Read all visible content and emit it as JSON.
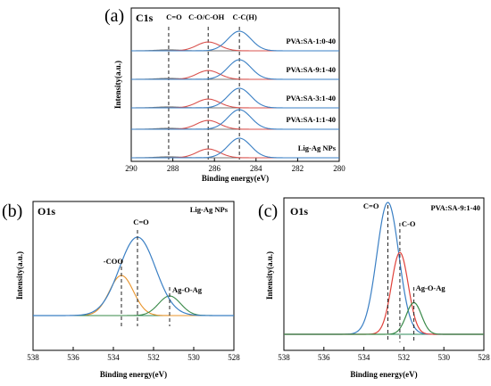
{
  "chart_data": [
    {
      "type": "line",
      "panel_label": "(a)",
      "core_label": "C1s",
      "xlabel": "Binding energy(eV)",
      "ylabel": "Intensity(a.u.)",
      "xlim": [
        290,
        280
      ],
      "x_ticks": [
        "290",
        "288",
        "286",
        "284",
        "282",
        "280"
      ],
      "x_reversed": true,
      "peak_labels": [
        {
          "text": "C=O",
          "x": 288.2
        },
        {
          "text": "C-O/C-OH",
          "x": 286.3
        },
        {
          "text": "C-C(H)",
          "x": 284.8
        }
      ],
      "stacks": [
        {
          "sample": "PVA:SA-1:0-40",
          "peaks": [
            {
              "center": 288.2,
              "height": 0.05,
              "color": "#7a7a7a"
            },
            {
              "center": 286.3,
              "height": 0.45,
              "color": "#d9534f"
            },
            {
              "center": 284.8,
              "height": 1.0,
              "color": "#3a7fc4"
            }
          ]
        },
        {
          "sample": "PVA:SA-9:1-40",
          "peaks": [
            {
              "center": 288.2,
              "height": 0.05,
              "color": "#7a7a7a"
            },
            {
              "center": 286.3,
              "height": 0.45,
              "color": "#d9534f"
            },
            {
              "center": 284.8,
              "height": 1.0,
              "color": "#3a7fc4"
            }
          ]
        },
        {
          "sample": "PVA:SA-3:1-40",
          "peaks": [
            {
              "center": 288.2,
              "height": 0.05,
              "color": "#7a7a7a"
            },
            {
              "center": 286.3,
              "height": 0.45,
              "color": "#d9534f"
            },
            {
              "center": 284.8,
              "height": 1.0,
              "color": "#3a7fc4"
            }
          ]
        },
        {
          "sample": "PVA:SA-1:1-40",
          "peaks": [
            {
              "center": 288.2,
              "height": 0.05,
              "color": "#7a7a7a"
            },
            {
              "center": 286.3,
              "height": 0.45,
              "color": "#d9534f"
            },
            {
              "center": 284.8,
              "height": 1.0,
              "color": "#3a7fc4"
            }
          ]
        },
        {
          "sample": "Lig-Ag NPs",
          "peaks": [
            {
              "center": 288.2,
              "height": 0.05,
              "color": "#7a7a7a"
            },
            {
              "center": 286.3,
              "height": 0.45,
              "color": "#d9534f"
            },
            {
              "center": 284.8,
              "height": 1.0,
              "color": "#3a7fc4"
            }
          ]
        }
      ]
    },
    {
      "type": "line",
      "panel_label": "(b)",
      "core_label": "O1s",
      "sample": "Lig-Ag NPs",
      "xlabel": "Binding energy(eV)",
      "ylabel": "Intensity(a.u.)",
      "xlim": [
        538,
        528
      ],
      "x_ticks": [
        "538",
        "536",
        "534",
        "532",
        "530",
        "528"
      ],
      "x_reversed": true,
      "components": [
        {
          "label": "-COO",
          "center": 533.6,
          "height": 0.45,
          "color": "#e8942b"
        },
        {
          "label": "Ag-O-Ag",
          "center": 531.2,
          "height": 0.22,
          "color": "#3a8a4a"
        }
      ],
      "envelope": {
        "label": "C=O",
        "center": 532.8,
        "height": 0.88,
        "color": "#3a7fc4"
      }
    },
    {
      "type": "line",
      "panel_label": "(c)",
      "core_label": "O1s",
      "sample": "PVA:SA-9:1-40",
      "xlabel": "Binding energy(eV)",
      "ylabel": "Intensity(a.u.)",
      "xlim": [
        538,
        528
      ],
      "x_ticks": [
        "538",
        "536",
        "534",
        "532",
        "530",
        "528"
      ],
      "x_reversed": true,
      "peaks": [
        {
          "label": "C=O",
          "center": 532.8,
          "height": 1.0,
          "color": "#3a7fc4"
        },
        {
          "label": "C-O",
          "center": 532.2,
          "height": 0.62,
          "color": "#e0413a"
        },
        {
          "label": "Ag-O-Ag",
          "center": 531.5,
          "height": 0.24,
          "color": "#3a8a4a"
        }
      ]
    }
  ]
}
